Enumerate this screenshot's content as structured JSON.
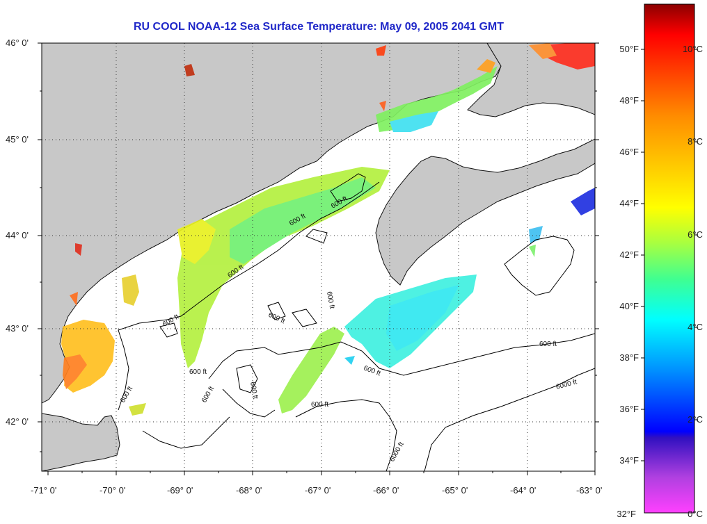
{
  "title": "RU COOL  NOAA-12  Sea Surface Temperature:  May 09, 2005 2041 GMT",
  "map": {
    "lat_labels": [
      "46° 0'",
      "45° 0'",
      "44° 0'",
      "43° 0'",
      "42° 0'"
    ],
    "lon_labels": [
      "-71° 0'",
      "-70° 0'",
      "-69° 0'",
      "-68° 0'",
      "-67° 0'",
      "-66° 0'",
      "-65° 0'",
      "-64° 0'",
      "-63° 0'"
    ],
    "contour_labels": [
      "600 ft",
      "600 ft",
      "600 ft",
      "600 ft",
      "600 ft",
      "600 ft",
      "600 ft",
      "600 ft",
      "600 ft",
      "600 ft",
      "600 ft",
      "600 ft",
      "600 ft",
      "6000 ft",
      "6000 ft"
    ],
    "colors": {
      "land": "#c8c8c8",
      "cloud": "#ffffff",
      "frame": "#000000"
    }
  },
  "colorbar": {
    "fahrenheit_labels": [
      "50°F",
      "48°F",
      "46°F",
      "44°F",
      "42°F",
      "40°F",
      "38°F",
      "36°F",
      "34°F",
      "32°F"
    ],
    "celsius_labels": [
      "10°C",
      "8°C",
      "6°C",
      "4°C",
      "2°C",
      "0°C"
    ],
    "colors": [
      "#9b0000",
      "#ff0000",
      "#ff8000",
      "#ffd000",
      "#ffff00",
      "#a8ff40",
      "#40ff90",
      "#00ffff",
      "#0080ff",
      "#0000ff",
      "#6020c0",
      "#c040e0",
      "#ff40ff"
    ]
  }
}
